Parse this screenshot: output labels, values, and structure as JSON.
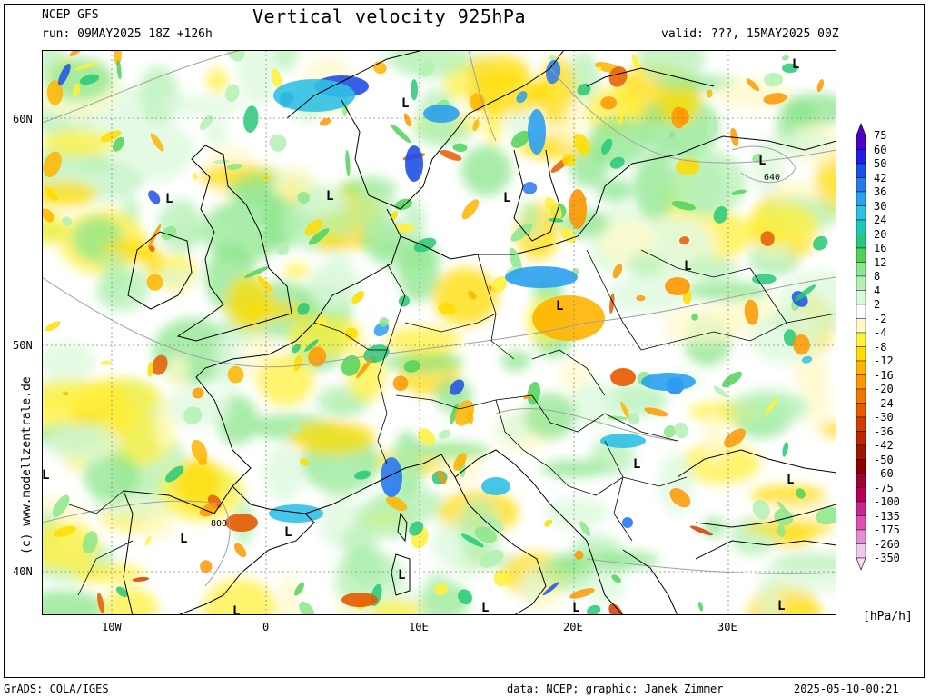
{
  "header": {
    "model": "NCEP GFS",
    "run": "run: 09MAY2025 18Z +126h",
    "title": "Vertical velocity 925hPa",
    "valid": "valid: ???, 15MAY2025 00Z"
  },
  "footer": {
    "left": "GrADS: COLA/IGES",
    "middle": "data: NCEP; graphic: Janek Zimmer",
    "right": "2025-05-10-00:21"
  },
  "copyright": "(c) www.modellzentrale.de",
  "axes": {
    "lat_labels": [
      "60N",
      "50N",
      "40N"
    ],
    "lon_labels": [
      "10W",
      "0",
      "10E",
      "20E",
      "30E"
    ]
  },
  "map_labels": {
    "low_marker": "L",
    "contour_640": "640",
    "contour_800": "800"
  },
  "colorbar": {
    "unit": "[hPa/h]",
    "levels": [
      "75",
      "60",
      "50",
      "42",
      "36",
      "30",
      "24",
      "20",
      "16",
      "12",
      "8",
      "4",
      "2",
      "-2",
      "-4",
      "-8",
      "-12",
      "-16",
      "-20",
      "-24",
      "-30",
      "-36",
      "-42",
      "-50",
      "-60",
      "-75",
      "-100",
      "-135",
      "-175",
      "-260",
      "-350"
    ],
    "colors": [
      "#4b00c8",
      "#1e1ee6",
      "#1e50e6",
      "#2878f0",
      "#2ba0f0",
      "#32c0e6",
      "#1ec8b4",
      "#28c878",
      "#50d25a",
      "#8ce68c",
      "#b4f0b4",
      "#dcf8dc",
      "#ffffff",
      "#fffac8",
      "#fff03c",
      "#ffdc00",
      "#ffb400",
      "#ff9600",
      "#f07800",
      "#e65a00",
      "#d23c00",
      "#be2800",
      "#a01400",
      "#8c0000",
      "#a00032",
      "#b4005a",
      "#c8288c",
      "#dc50b4",
      "#e68cd2",
      "#f0c8f0"
    ],
    "top_arrow_color": "#5000c8",
    "bottom_arrow_color": "#f8e0f8"
  },
  "colors": {
    "sea_base": "#ffffff",
    "coast": "#000000",
    "contour": "#a0a0a0"
  }
}
